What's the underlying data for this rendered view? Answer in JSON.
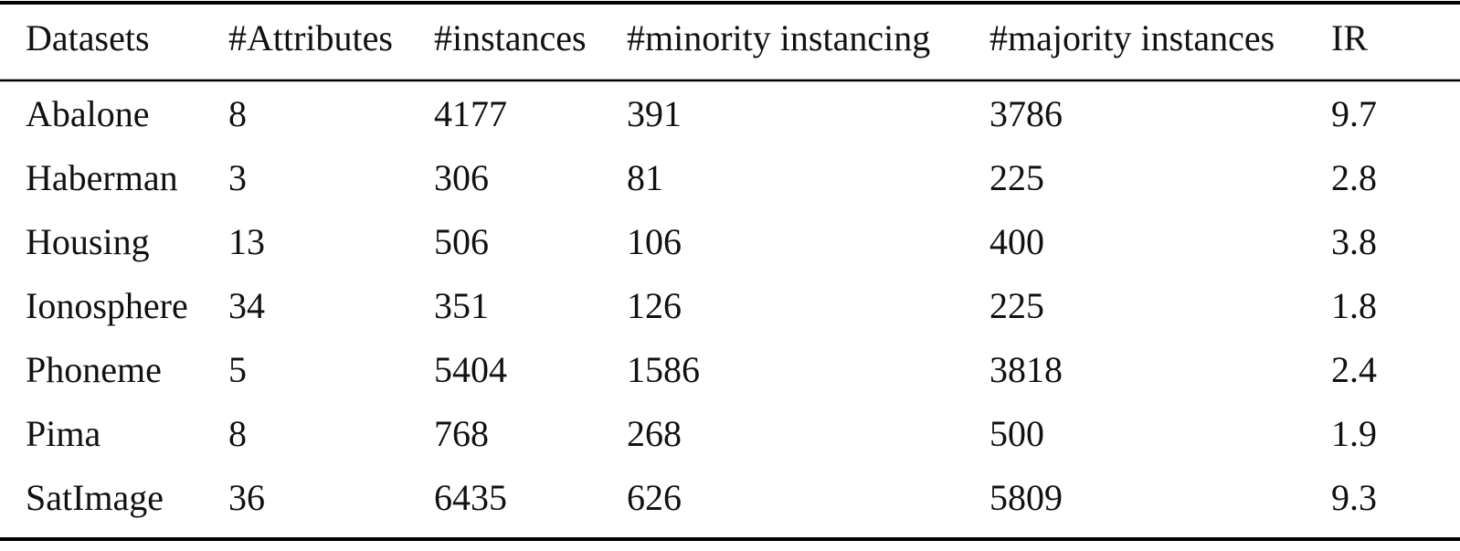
{
  "table": {
    "header": [
      "Datasets",
      "#Attributes",
      "#instances",
      "#minority instancing",
      "#majority instances",
      "IR"
    ],
    "rows": [
      [
        "Abalone",
        8,
        4177,
        391,
        3786,
        9.7
      ],
      [
        "Haberman",
        3,
        306,
        81,
        225,
        2.8
      ],
      [
        "Housing",
        13,
        506,
        106,
        400,
        3.8
      ],
      [
        "Ionosphere",
        34,
        351,
        126,
        225,
        1.8
      ],
      [
        "Phoneme",
        5,
        5404,
        1586,
        3818,
        2.4
      ],
      [
        "Pima",
        8,
        768,
        268,
        500,
        1.9
      ],
      [
        "SatImage",
        36,
        6435,
        626,
        5809,
        9.3
      ]
    ]
  }
}
